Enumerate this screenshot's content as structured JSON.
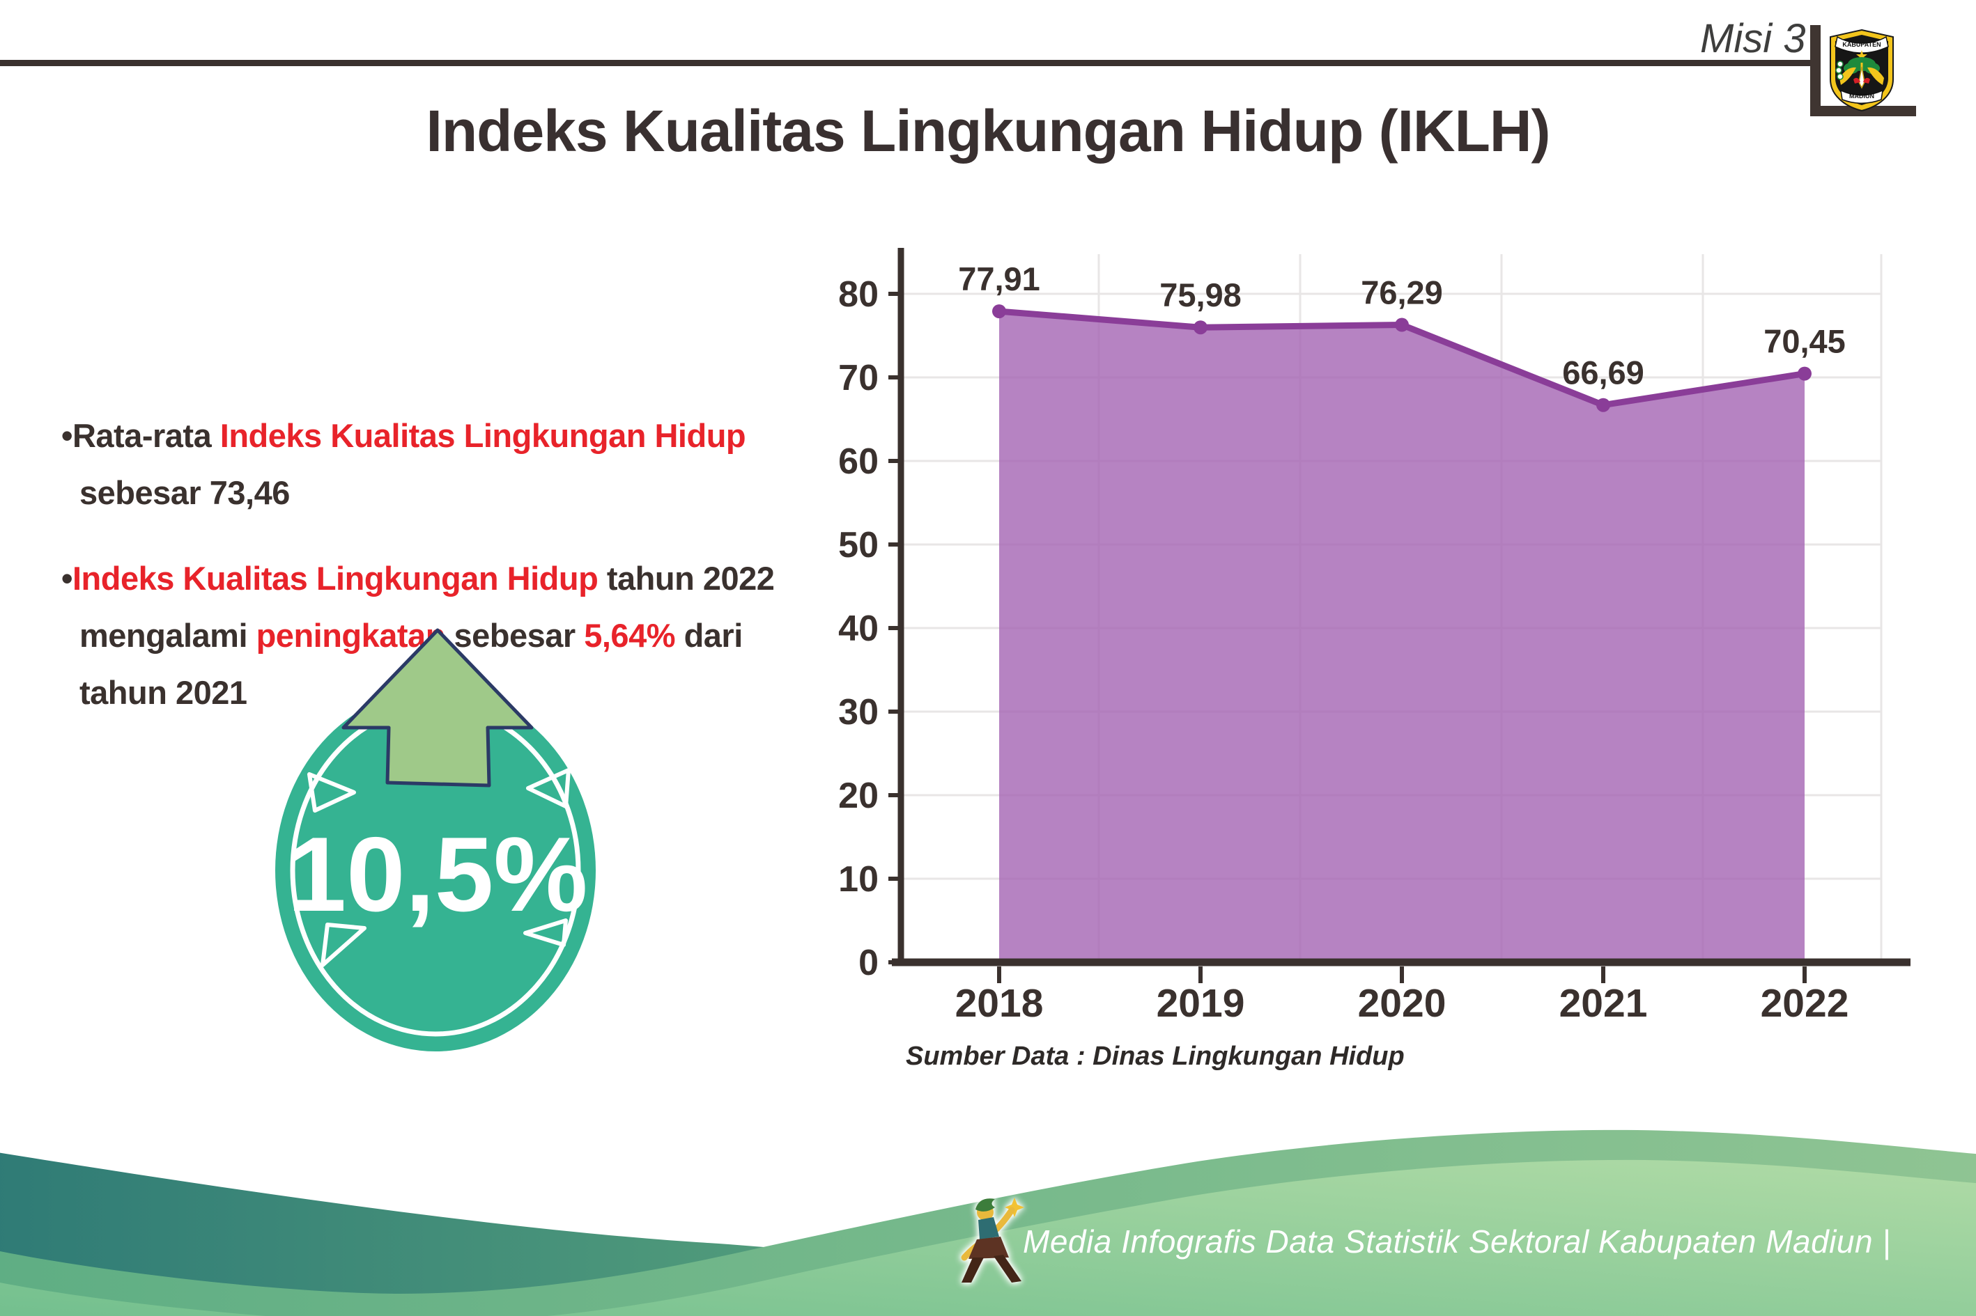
{
  "header": {
    "misi_label": "Misi 3",
    "logo": {
      "top_text": "KABUPATEN",
      "bottom_text": "MADIUN"
    }
  },
  "title": "Indeks Kualitas Lingkungan Hidup (IKLH)",
  "bullets": [
    {
      "lines": [
        [
          {
            "t": "•",
            "c": "dark"
          },
          {
            "t": "Rata-rata ",
            "c": "dark"
          },
          {
            "t": "Indeks Kualitas Lingkungan Hidup",
            "c": "red"
          }
        ],
        [
          {
            "t": "sebesar 73,46",
            "c": "dark"
          }
        ]
      ]
    },
    {
      "lines": [
        [
          {
            "t": "•",
            "c": "dark"
          },
          {
            "t": "Indeks Kualitas Lingkungan Hidup",
            "c": "red"
          },
          {
            "t": " tahun 2022",
            "c": "dark"
          }
        ],
        [
          {
            "t": "mengalami ",
            "c": "dark"
          },
          {
            "t": "peningkatan",
            "c": "red"
          },
          {
            "t": " sebesar ",
            "c": "dark"
          },
          {
            "t": "5,64%",
            "c": "red"
          },
          {
            "t": " dari",
            "c": "dark"
          }
        ],
        [
          {
            "t": "tahun 2021",
            "c": "dark"
          }
        ]
      ]
    }
  ],
  "badge": {
    "value": "10,5%"
  },
  "chart_data": {
    "type": "area",
    "categories": [
      "2018",
      "2019",
      "2020",
      "2021",
      "2022"
    ],
    "values": [
      77.91,
      75.98,
      76.29,
      66.69,
      70.45
    ],
    "point_labels": [
      "77,91",
      "75,98",
      "76,29",
      "66,69",
      "70,45"
    ],
    "y_ticks": [
      0,
      10,
      20,
      30,
      40,
      50,
      60,
      70,
      80
    ],
    "ylim": [
      0,
      85
    ],
    "title": "",
    "xlabel": "",
    "ylabel": "",
    "grid": true,
    "legend": false,
    "source": "Sumber Data : Dinas Lingkungan Hidup",
    "line_color": "#8a3d98",
    "fill_color": "rgba(164,100,179,0.8)",
    "axis_color": "#3a312e",
    "grid_color": "#e8e6e6"
  },
  "footer": {
    "text": "Media Infografis Data Statistik Sektoral Kabupaten Madiun |"
  },
  "colors": {
    "accent_teal": "#35b392",
    "arrow_green": "#9fc989",
    "arrow_outline": "#2b3a66",
    "highlight_red": "#e8232a",
    "text_dark": "#3a312e",
    "wave_teal_start": "#2f7b76",
    "wave_teal_end": "#57a17c",
    "wave_green_dark": "#79b28c",
    "wave_green_light_start": "#72bf8e",
    "wave_green_light_end": "#b0dba6"
  }
}
